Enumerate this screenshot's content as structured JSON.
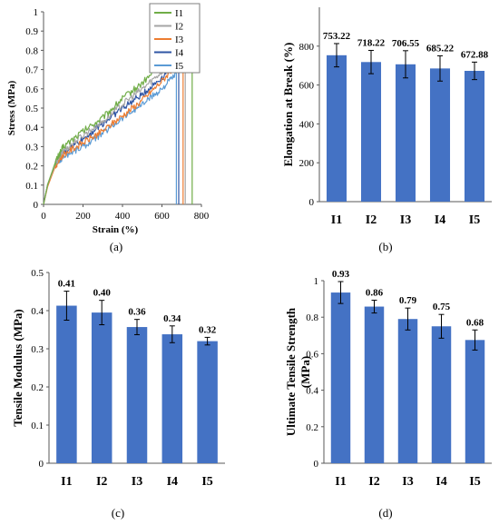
{
  "figure": {
    "panels": [
      {
        "label": "(a)"
      },
      {
        "label": "(b)"
      },
      {
        "label": "(c)"
      },
      {
        "label": "(d)"
      }
    ]
  },
  "colors": {
    "bar": "#4472C4",
    "axis": "#595959",
    "grid": "#d9d9d9",
    "I1": "#70AD47",
    "I2": "#A5A5A5",
    "I3": "#ED7D31",
    "I4": "#2F55A4",
    "I5": "#5B9BD5"
  },
  "chart_data": [
    {
      "type": "line",
      "xlabel": "Strain (%)",
      "ylabel": "Stress (MPa)",
      "xlim": [
        0,
        800
      ],
      "ylim": [
        0,
        1
      ],
      "xticks": [
        "0",
        "200",
        "400",
        "600",
        "800"
      ],
      "yticks": [
        "0",
        "0.1",
        "0.2",
        "0.3",
        "0.4",
        "0.5",
        "0.6",
        "0.7",
        "0.8",
        "0.9",
        "1"
      ],
      "grid": false,
      "legend": "top-right",
      "series": [
        {
          "name": "I1",
          "x": [
            0,
            20,
            60,
            100,
            200,
            300,
            400,
            500,
            600,
            700,
            753
          ],
          "y": [
            0,
            0.1,
            0.22,
            0.3,
            0.38,
            0.45,
            0.55,
            0.63,
            0.73,
            0.85,
            0.93
          ]
        },
        {
          "name": "I2",
          "x": [
            0,
            20,
            60,
            100,
            200,
            300,
            400,
            500,
            600,
            700,
            718
          ],
          "y": [
            0,
            0.1,
            0.21,
            0.28,
            0.36,
            0.43,
            0.52,
            0.6,
            0.69,
            0.8,
            0.86
          ]
        },
        {
          "name": "I3",
          "x": [
            0,
            20,
            60,
            100,
            200,
            300,
            400,
            500,
            600,
            700,
            707
          ],
          "y": [
            0,
            0.09,
            0.2,
            0.26,
            0.32,
            0.38,
            0.46,
            0.54,
            0.64,
            0.76,
            0.79
          ]
        },
        {
          "name": "I4",
          "x": [
            0,
            20,
            60,
            100,
            200,
            300,
            400,
            500,
            600,
            685
          ],
          "y": [
            0,
            0.1,
            0.21,
            0.27,
            0.34,
            0.42,
            0.5,
            0.57,
            0.66,
            0.75
          ]
        },
        {
          "name": "I5",
          "x": [
            0,
            20,
            60,
            100,
            200,
            300,
            400,
            500,
            600,
            673
          ],
          "y": [
            0,
            0.1,
            0.2,
            0.25,
            0.3,
            0.37,
            0.45,
            0.52,
            0.6,
            0.68
          ]
        }
      ]
    },
    {
      "type": "bar",
      "ylabel": "Elongation at Break (%)",
      "categories": [
        "I1",
        "I2",
        "I3",
        "I4",
        "I5"
      ],
      "values": [
        753.22,
        718.22,
        706.55,
        685.22,
        672.88
      ],
      "labels": [
        "753.22",
        "718.22",
        "706.55",
        "685.22",
        "672.88"
      ],
      "errors": [
        60,
        60,
        70,
        65,
        45
      ],
      "ylim": [
        0,
        1000
      ],
      "yticks": [
        "0",
        "200",
        "400",
        "600",
        "800"
      ],
      "grid": false
    },
    {
      "type": "bar",
      "ylabel": "Tensile Modulus (MPa)",
      "categories": [
        "I1",
        "I2",
        "I3",
        "I4",
        "I5"
      ],
      "values": [
        0.413,
        0.395,
        0.357,
        0.338,
        0.32
      ],
      "labels": [
        "0.41",
        "0.40",
        "0.36",
        "0.34",
        "0.32"
      ],
      "errors": [
        0.038,
        0.032,
        0.02,
        0.022,
        0.01
      ],
      "ylim": [
        0,
        0.5
      ],
      "yticks": [
        "0",
        "0.1",
        "0.2",
        "0.3",
        "0.4",
        "0.5"
      ],
      "grid": false
    },
    {
      "type": "bar",
      "ylabel": "Ultimate Tensile Strength (MPa)",
      "categories": [
        "I1",
        "I2",
        "I3",
        "I4",
        "I5"
      ],
      "values": [
        0.935,
        0.858,
        0.79,
        0.75,
        0.675
      ],
      "labels": [
        "0.93",
        "0.86",
        "0.79",
        "0.75",
        "0.68"
      ],
      "errors": [
        0.06,
        0.035,
        0.06,
        0.065,
        0.055
      ],
      "ylim": [
        0,
        1
      ],
      "yticks": [
        "0",
        "0.2",
        "0.4",
        "0.6",
        "0.8",
        "1"
      ],
      "grid": false
    }
  ]
}
